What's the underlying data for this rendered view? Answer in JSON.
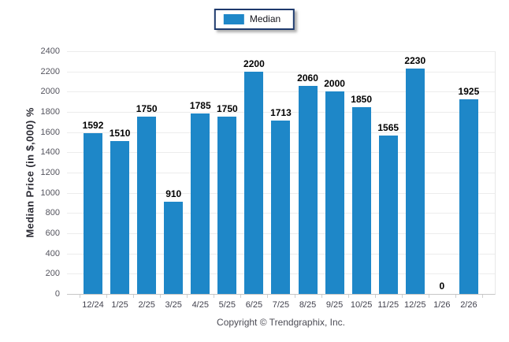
{
  "legend": {
    "label": "Median"
  },
  "footer": {
    "copyright": "Copyright © Trendgraphix, Inc."
  },
  "colors": {
    "bar": "#1e87c8",
    "gridline": "#ececec",
    "axis_line": "#c6c6c6",
    "legend_border": "#1e3a6d",
    "tick_text": "#54545e",
    "value_text": "#000000"
  },
  "chart_data": {
    "type": "bar",
    "title": "",
    "xlabel": "",
    "ylabel": "Median Price (in $,000) %",
    "categories": [
      "12/24",
      "1/25",
      "2/25",
      "3/25",
      "4/25",
      "5/25",
      "6/25",
      "7/25",
      "8/25",
      "9/25",
      "10/25",
      "11/25",
      "12/25",
      "1/26",
      "2/26"
    ],
    "values": [
      1592,
      1510,
      1750,
      910,
      1785,
      1750,
      2200,
      1713,
      2060,
      2000,
      1850,
      1565,
      2230,
      0,
      1925
    ],
    "series": [
      {
        "name": "Median",
        "values": [
          1592,
          1510,
          1750,
          910,
          1785,
          1750,
          2200,
          1713,
          2060,
          2000,
          1850,
          1565,
          2230,
          0,
          1925
        ]
      }
    ],
    "ylim": [
      0,
      2400
    ],
    "yticks": [
      0,
      200,
      400,
      600,
      800,
      1000,
      1200,
      1400,
      1600,
      1800,
      2000,
      2200,
      2400
    ],
    "grid": "horizontal",
    "legend_position": "top-center",
    "data_labels": true
  }
}
